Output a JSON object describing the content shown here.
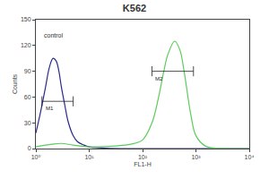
{
  "chart_data": {
    "type": "line",
    "title": "K562",
    "x_label": "FL1-H",
    "y_label": "Counts",
    "log": "x",
    "grid": false,
    "xlim": [
      1,
      10000
    ],
    "xticks": [
      {
        "value": 1,
        "label": "10⁰"
      },
      {
        "value": 10,
        "label": "10¹"
      },
      {
        "value": 100,
        "label": "10²"
      },
      {
        "value": 1000,
        "label": "10³"
      },
      {
        "value": 10000,
        "label": "10⁴"
      }
    ],
    "ylim": [
      0,
      150
    ],
    "yticks": [
      0,
      30,
      60,
      90,
      120,
      150
    ],
    "series": [
      {
        "color": "#2a2a8c",
        "x": [
          1,
          1.2,
          1.5,
          1.8,
          2.1,
          2.4,
          2.7,
          3,
          3.5,
          4,
          5,
          6,
          8,
          10,
          15,
          20,
          50,
          100,
          1000,
          10000
        ],
        "values": [
          18,
          40,
          70,
          95,
          105,
          102,
          90,
          72,
          50,
          32,
          15,
          8,
          4,
          2,
          1,
          0.5,
          0,
          0,
          0,
          0
        ]
      },
      {
        "color": "#5ccc5c",
        "x": [
          1,
          2,
          3,
          5,
          10,
          30,
          60,
          100,
          150,
          200,
          250,
          300,
          400,
          500,
          600,
          800,
          1000,
          1500,
          2000,
          10000
        ],
        "values": [
          2,
          5,
          6,
          4,
          2,
          3,
          5,
          10,
          30,
          60,
          90,
          110,
          125,
          115,
          90,
          40,
          15,
          3,
          1,
          0
        ]
      }
    ],
    "annotations": [
      {
        "text": "control",
        "x": 1.3,
        "y": 132
      }
    ],
    "gates": [
      {
        "label": "M1",
        "x": [
          1.3,
          5
        ],
        "y": 55
      },
      {
        "label": "M2",
        "x": [
          150,
          900
        ],
        "y": 90
      }
    ]
  }
}
